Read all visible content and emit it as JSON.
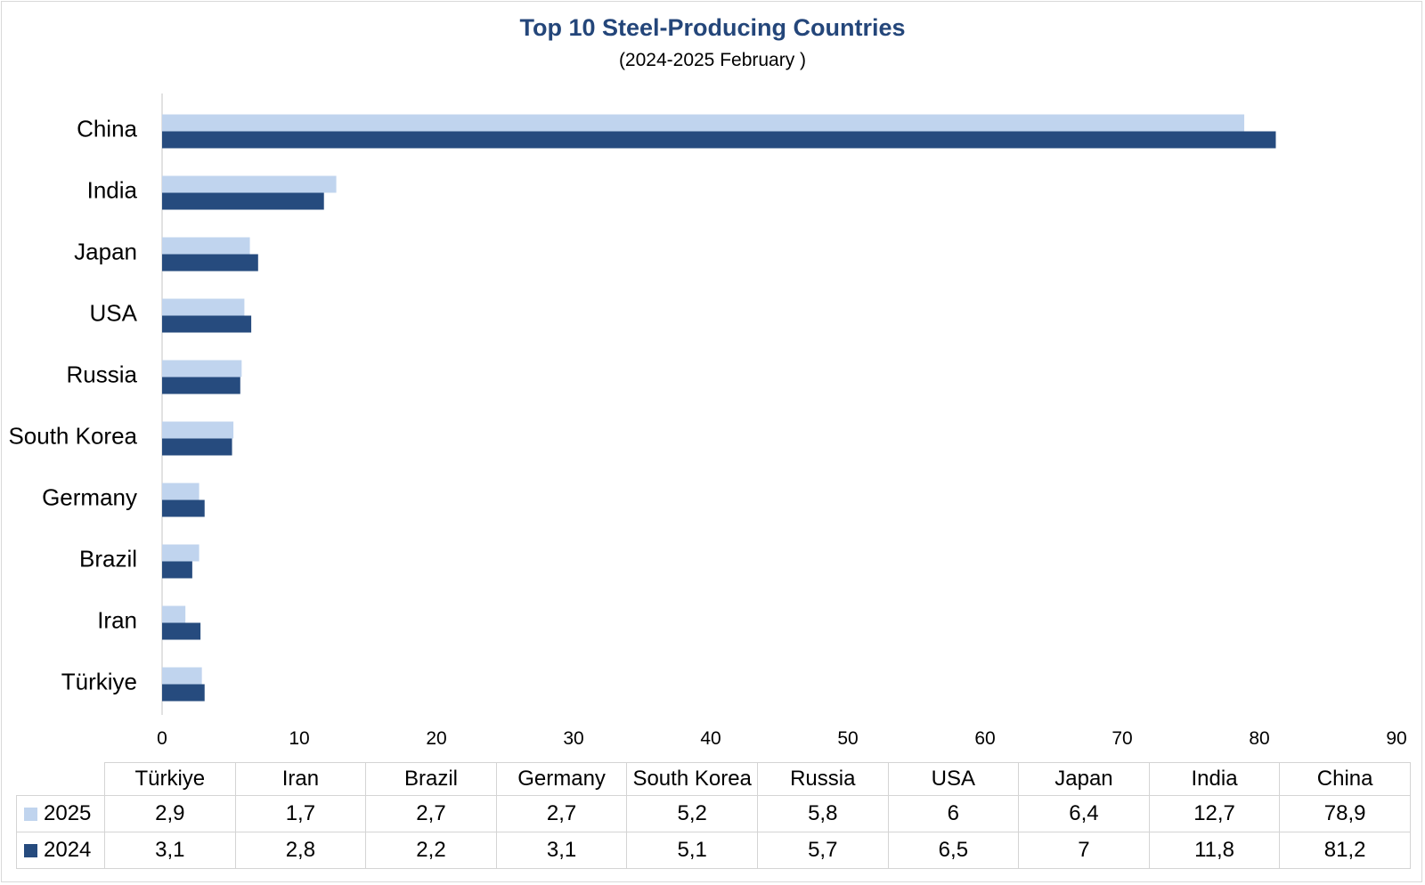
{
  "chart_data": {
    "type": "bar",
    "orientation": "horizontal",
    "title": "Top 10 Steel-Producing Countries",
    "subtitle": "(2024-2025 February )",
    "categories": [
      "Türkiye",
      "Iran",
      "Brazil",
      "Germany",
      "South Korea",
      "Russia",
      "USA",
      "Japan",
      "India",
      "China"
    ],
    "series": [
      {
        "name": "2025",
        "color": "#c0d4ee",
        "values": [
          2.9,
          1.7,
          2.7,
          2.7,
          5.2,
          5.8,
          6,
          6.4,
          12.7,
          78.9
        ],
        "labels": [
          "2,9",
          "1,7",
          "2,7",
          "2,7",
          "5,2",
          "5,8",
          "6",
          "6,4",
          "12,7",
          "78,9"
        ]
      },
      {
        "name": "2024",
        "color": "#264b7e",
        "values": [
          3.1,
          2.8,
          2.2,
          3.1,
          5.1,
          5.7,
          6.5,
          7,
          11.8,
          81.2
        ],
        "labels": [
          "3,1",
          "2,8",
          "2,2",
          "3,1",
          "5,1",
          "5,7",
          "6,5",
          "7",
          "11,8",
          "81,2"
        ]
      }
    ],
    "xlim": [
      0,
      90
    ],
    "xticks": [
      0,
      10,
      20,
      30,
      40,
      50,
      60,
      70,
      80,
      90
    ],
    "grid": false,
    "legend": "data-table"
  }
}
